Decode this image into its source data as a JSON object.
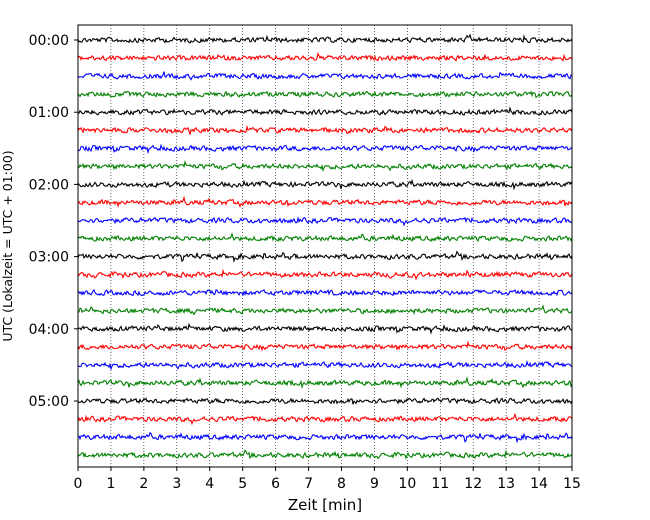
{
  "chart_data": {
    "type": "line",
    "title": "",
    "xlabel": "Zeit  [min]",
    "ylabel": "UTC (Lokalzeit = UTC + 01:00)",
    "xlim": [
      0,
      15
    ],
    "x_ticks": [
      "0",
      "1",
      "2",
      "3",
      "4",
      "5",
      "6",
      "7",
      "8",
      "9",
      "10",
      "11",
      "12",
      "13",
      "14",
      "15"
    ],
    "y_tick_labels": [
      "00:00",
      "01:00",
      "02:00",
      "03:00",
      "04:00",
      "05:00"
    ],
    "grid": "vertical dotted lines at each minute",
    "trace_interval_min": 15,
    "trace_count": 24,
    "trace_start_times_utc": [
      "00:00",
      "00:15",
      "00:30",
      "00:45",
      "01:00",
      "01:15",
      "01:30",
      "01:45",
      "02:00",
      "02:15",
      "02:30",
      "02:45",
      "03:00",
      "03:15",
      "03:30",
      "03:45",
      "04:00",
      "04:15",
      "04:30",
      "04:45",
      "05:00",
      "05:15",
      "05:30",
      "05:45"
    ],
    "trace_color_cycle": [
      "#000000",
      "#ff0000",
      "#0000ff",
      "#008000"
    ],
    "legend": "none"
  }
}
